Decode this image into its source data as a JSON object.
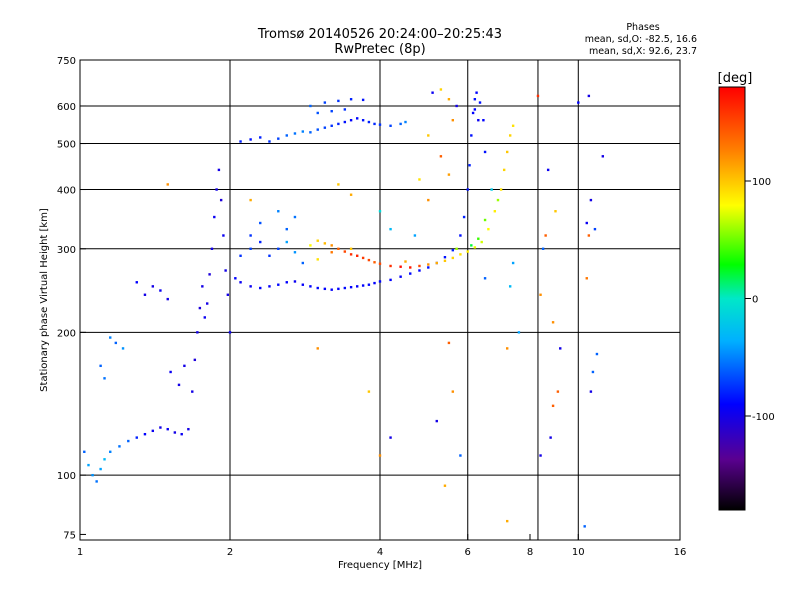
{
  "title_line1": "Tromsø 20140526 20:24:00–20:25:43",
  "title_line2": "RwPretec (8p)",
  "stats": {
    "heading": "Phases",
    "line_o": "mean, sd,O:  -82.5, 16.6",
    "line_x": "mean, sd,X:  92.6, 23.7"
  },
  "colorbar": {
    "unit": "[deg]",
    "range": [
      -180,
      180
    ],
    "ticks": [
      {
        "value": 100,
        "label": "100"
      },
      {
        "value": 0,
        "label": "0"
      },
      {
        "value": -100,
        "label": "-100"
      }
    ]
  },
  "chart_data": {
    "type": "scatter",
    "xlabel": "Frequency [MHz]",
    "ylabel": "Stationary phase Virtual Height [km]",
    "xscale": "log",
    "yscale": "log",
    "xlim": [
      1,
      16
    ],
    "ylim": [
      73,
      750
    ],
    "xticks": [
      {
        "value": 1,
        "label": "1"
      },
      {
        "value": 2,
        "label": "2"
      },
      {
        "value": 4,
        "label": "4"
      },
      {
        "value": 6,
        "label": "6"
      },
      {
        "value": 8,
        "label": "8"
      },
      {
        "value": 10,
        "label": "10"
      },
      {
        "value": 16,
        "label": "16"
      }
    ],
    "yticks": [
      {
        "value": 75,
        "label": "75"
      },
      {
        "value": 100,
        "label": "100"
      },
      {
        "value": 200,
        "label": "200"
      },
      {
        "value": 300,
        "label": "300"
      },
      {
        "value": 400,
        "label": "400"
      },
      {
        "value": 500,
        "label": "500"
      },
      {
        "value": 600,
        "label": "600"
      },
      {
        "value": 750,
        "label": "750"
      }
    ],
    "grid_x": [
      2,
      4,
      6,
      8.3,
      10
    ],
    "grid_y": [
      100,
      200,
      300,
      400,
      500,
      600
    ],
    "color_variable": "phase [deg]",
    "points": [
      [
        1.02,
        112,
        -60
      ],
      [
        1.04,
        105,
        -40
      ],
      [
        1.06,
        100,
        -45
      ],
      [
        1.08,
        97,
        -55
      ],
      [
        1.1,
        103,
        -40
      ],
      [
        1.12,
        108,
        -30
      ],
      [
        1.15,
        112,
        -50
      ],
      [
        1.2,
        115,
        -55
      ],
      [
        1.25,
        118,
        -60
      ],
      [
        1.3,
        120,
        -80
      ],
      [
        1.35,
        122,
        -90
      ],
      [
        1.4,
        124,
        -95
      ],
      [
        1.45,
        126,
        -100
      ],
      [
        1.5,
        125,
        -95
      ],
      [
        1.55,
        123,
        -100
      ],
      [
        1.6,
        122,
        -95
      ],
      [
        1.65,
        125,
        -100
      ],
      [
        1.68,
        150,
        -100
      ],
      [
        1.7,
        175,
        -105
      ],
      [
        1.72,
        200,
        -100
      ],
      [
        1.74,
        225,
        -105
      ],
      [
        1.76,
        250,
        -100
      ],
      [
        1.78,
        215,
        -95
      ],
      [
        1.8,
        230,
        -100
      ],
      [
        1.82,
        265,
        -105
      ],
      [
        1.84,
        300,
        -100
      ],
      [
        1.86,
        350,
        -95
      ],
      [
        1.88,
        400,
        -100
      ],
      [
        1.9,
        440,
        -100
      ],
      [
        1.92,
        380,
        -105
      ],
      [
        1.94,
        320,
        -95
      ],
      [
        1.96,
        270,
        -100
      ],
      [
        1.98,
        240,
        -100
      ],
      [
        2.0,
        200,
        -95
      ],
      [
        1.62,
        170,
        -100
      ],
      [
        1.58,
        155,
        -100
      ],
      [
        1.52,
        165,
        -95
      ],
      [
        1.5,
        235,
        -100
      ],
      [
        1.45,
        245,
        -95
      ],
      [
        1.4,
        250,
        -100
      ],
      [
        1.35,
        240,
        -100
      ],
      [
        1.3,
        255,
        -90
      ],
      [
        1.1,
        170,
        -60
      ],
      [
        1.12,
        160,
        -55
      ],
      [
        1.18,
        190,
        -60
      ],
      [
        1.22,
        185,
        -45
      ],
      [
        1.15,
        195,
        -50
      ],
      [
        2.05,
        260,
        -90
      ],
      [
        2.1,
        255,
        -95
      ],
      [
        2.2,
        250,
        -95
      ],
      [
        2.3,
        248,
        -90
      ],
      [
        2.4,
        250,
        -92
      ],
      [
        2.5,
        252,
        -88
      ],
      [
        2.6,
        255,
        -90
      ],
      [
        2.7,
        256,
        -95
      ],
      [
        2.8,
        252,
        -92
      ],
      [
        2.9,
        250,
        -90
      ],
      [
        3.0,
        248,
        -88
      ],
      [
        3.1,
        247,
        -90
      ],
      [
        3.2,
        246,
        -92
      ],
      [
        3.3,
        247,
        -90
      ],
      [
        3.4,
        248,
        -88
      ],
      [
        3.5,
        249,
        -90
      ],
      [
        3.6,
        250,
        -92
      ],
      [
        3.7,
        251,
        -90
      ],
      [
        3.8,
        252,
        -88
      ],
      [
        3.9,
        254,
        -90
      ],
      [
        4.0,
        256,
        -88
      ],
      [
        4.2,
        258,
        -90
      ],
      [
        4.4,
        262,
        -92
      ],
      [
        4.6,
        266,
        -88
      ],
      [
        4.8,
        270,
        -90
      ],
      [
        5.0,
        274,
        -85
      ],
      [
        5.2,
        280,
        -80
      ],
      [
        5.4,
        288,
        -85
      ],
      [
        5.6,
        298,
        -80
      ],
      [
        5.8,
        320,
        -85
      ],
      [
        5.9,
        350,
        -80
      ],
      [
        6.0,
        400,
        -85
      ],
      [
        6.05,
        450,
        -80
      ],
      [
        6.1,
        520,
        -85
      ],
      [
        6.15,
        580,
        -90
      ],
      [
        6.2,
        620,
        -85
      ],
      [
        6.25,
        640,
        -90
      ],
      [
        6.35,
        610,
        -85
      ],
      [
        6.45,
        560,
        -90
      ],
      [
        6.5,
        480,
        -85
      ],
      [
        2.1,
        290,
        -75
      ],
      [
        2.2,
        300,
        -70
      ],
      [
        2.3,
        310,
        -80
      ],
      [
        2.4,
        290,
        -75
      ],
      [
        2.5,
        300,
        -70
      ],
      [
        2.6,
        330,
        -60
      ],
      [
        2.7,
        350,
        -55
      ],
      [
        2.5,
        360,
        -50
      ],
      [
        2.3,
        340,
        -65
      ],
      [
        2.2,
        320,
        -75
      ],
      [
        2.6,
        310,
        -40
      ],
      [
        2.7,
        295,
        -45
      ],
      [
        2.8,
        280,
        -60
      ],
      [
        2.1,
        505,
        -80
      ],
      [
        2.2,
        510,
        -85
      ],
      [
        2.3,
        515,
        -80
      ],
      [
        2.4,
        505,
        -75
      ],
      [
        2.5,
        512,
        -70
      ],
      [
        2.6,
        520,
        -60
      ],
      [
        2.7,
        525,
        -55
      ],
      [
        2.8,
        530,
        -50
      ],
      [
        2.9,
        528,
        -60
      ],
      [
        3.0,
        535,
        -65
      ],
      [
        3.1,
        540,
        -70
      ],
      [
        3.2,
        545,
        -75
      ],
      [
        3.3,
        550,
        -80
      ],
      [
        3.4,
        555,
        -85
      ],
      [
        3.5,
        560,
        -90
      ],
      [
        3.6,
        565,
        -88
      ],
      [
        3.7,
        560,
        -85
      ],
      [
        3.8,
        555,
        -80
      ],
      [
        3.9,
        550,
        -78
      ],
      [
        4.0,
        548,
        -75
      ],
      [
        4.2,
        545,
        -70
      ],
      [
        4.4,
        550,
        -60
      ],
      [
        4.5,
        555,
        -50
      ],
      [
        2.9,
        600,
        -60
      ],
      [
        3.1,
        610,
        -70
      ],
      [
        3.3,
        615,
        -75
      ],
      [
        3.5,
        620,
        -80
      ],
      [
        3.7,
        618,
        -85
      ],
      [
        3.0,
        580,
        -65
      ],
      [
        3.2,
        585,
        -70
      ],
      [
        3.4,
        590,
        -75
      ],
      [
        3.0,
        312,
        95
      ],
      [
        3.1,
        308,
        105
      ],
      [
        3.2,
        305,
        120
      ],
      [
        3.3,
        300,
        140
      ],
      [
        3.4,
        296,
        150
      ],
      [
        3.5,
        292,
        160
      ],
      [
        3.6,
        290,
        165
      ],
      [
        3.7,
        287,
        155
      ],
      [
        3.8,
        284,
        150
      ],
      [
        3.9,
        281,
        140
      ],
      [
        4.0,
        279,
        150
      ],
      [
        4.2,
        276,
        160
      ],
      [
        4.4,
        275,
        175
      ],
      [
        4.6,
        274,
        170
      ],
      [
        4.8,
        276,
        150
      ],
      [
        5.0,
        278,
        120
      ],
      [
        5.2,
        280,
        110
      ],
      [
        5.4,
        283,
        100
      ],
      [
        5.6,
        287,
        95
      ],
      [
        5.8,
        292,
        90
      ],
      [
        6.0,
        296,
        85
      ],
      [
        6.2,
        302,
        75
      ],
      [
        6.4,
        310,
        70
      ],
      [
        6.6,
        330,
        80
      ],
      [
        6.8,
        360,
        85
      ],
      [
        7.0,
        400,
        90
      ],
      [
        7.1,
        440,
        95
      ],
      [
        7.2,
        480,
        100
      ],
      [
        7.3,
        520,
        95
      ],
      [
        7.4,
        545,
        90
      ],
      [
        3.0,
        285,
        90
      ],
      [
        3.2,
        295,
        130
      ],
      [
        3.5,
        300,
        100
      ],
      [
        2.9,
        305,
        80
      ],
      [
        4.5,
        282,
        110
      ],
      [
        6.3,
        315,
        40
      ],
      [
        6.5,
        345,
        50
      ],
      [
        6.9,
        380,
        60
      ],
      [
        6.7,
        400,
        -20
      ],
      [
        6.1,
        305,
        20
      ],
      [
        5.7,
        300,
        60
      ],
      [
        1.5,
        410,
        120
      ],
      [
        2.2,
        380,
        110
      ],
      [
        3.3,
        410,
        100
      ],
      [
        3.5,
        390,
        110
      ],
      [
        4.0,
        360,
        -10
      ],
      [
        4.2,
        330,
        -30
      ],
      [
        4.7,
        320,
        -40
      ],
      [
        5.0,
        520,
        100
      ],
      [
        5.3,
        470,
        140
      ],
      [
        5.5,
        430,
        115
      ],
      [
        4.8,
        420,
        90
      ],
      [
        5.0,
        380,
        120
      ],
      [
        5.5,
        620,
        110
      ],
      [
        5.6,
        560,
        120
      ],
      [
        5.3,
        650,
        95
      ],
      [
        5.1,
        640,
        -95
      ],
      [
        5.7,
        600,
        -100
      ],
      [
        6.3,
        560,
        -95
      ],
      [
        6.2,
        590,
        -90
      ],
      [
        8.3,
        630,
        160
      ],
      [
        8.7,
        440,
        -95
      ],
      [
        9.0,
        360,
        100
      ],
      [
        8.6,
        320,
        140
      ],
      [
        8.5,
        300,
        -60
      ],
      [
        8.4,
        240,
        120
      ],
      [
        8.9,
        210,
        120
      ],
      [
        9.2,
        185,
        -100
      ],
      [
        9.1,
        150,
        140
      ],
      [
        8.9,
        140,
        140
      ],
      [
        8.8,
        120,
        -100
      ],
      [
        8.4,
        110,
        -100
      ],
      [
        10.0,
        610,
        -90
      ],
      [
        10.5,
        630,
        -100
      ],
      [
        11.2,
        470,
        -100
      ],
      [
        10.6,
        380,
        -100
      ],
      [
        10.4,
        340,
        -95
      ],
      [
        10.8,
        330,
        -70
      ],
      [
        10.5,
        320,
        140
      ],
      [
        10.4,
        260,
        130
      ],
      [
        10.9,
        180,
        -60
      ],
      [
        10.7,
        165,
        -60
      ],
      [
        10.6,
        150,
        -100
      ],
      [
        10.3,
        78,
        -60
      ],
      [
        7.2,
        80,
        110
      ],
      [
        5.4,
        95,
        110
      ],
      [
        5.5,
        190,
        140
      ],
      [
        5.6,
        150,
        120
      ],
      [
        5.2,
        130,
        -100
      ],
      [
        5.8,
        110,
        -60
      ],
      [
        4.2,
        120,
        -100
      ],
      [
        4.0,
        110,
        120
      ],
      [
        3.8,
        150,
        100
      ],
      [
        3.0,
        185,
        120
      ],
      [
        6.5,
        260,
        -60
      ],
      [
        7.4,
        280,
        -40
      ],
      [
        7.3,
        250,
        -30
      ],
      [
        7.6,
        200,
        -40
      ],
      [
        7.2,
        185,
        120
      ]
    ]
  }
}
